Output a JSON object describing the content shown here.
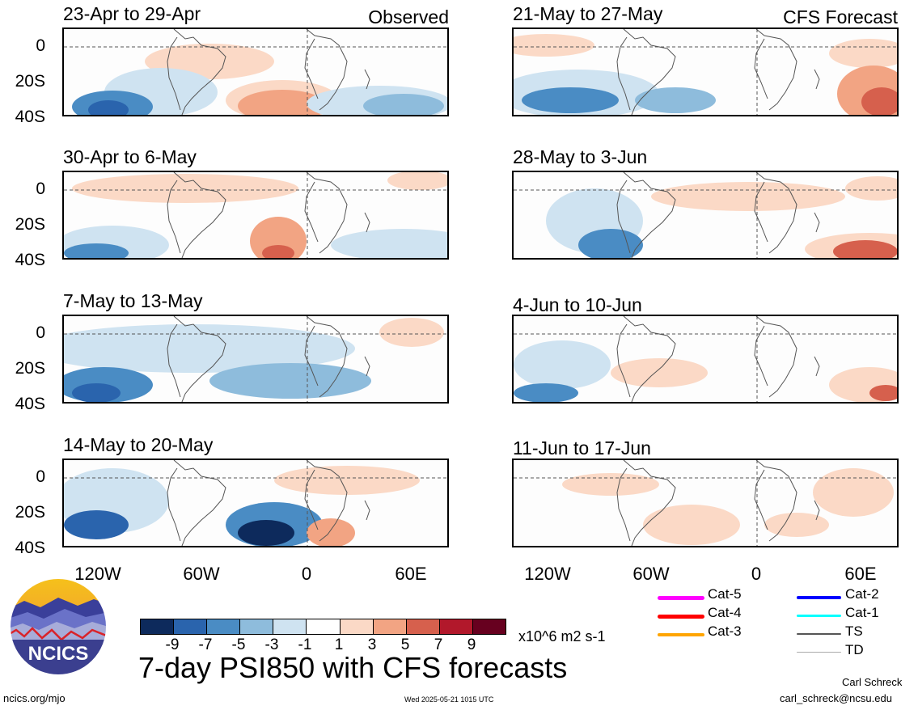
{
  "panels": [
    {
      "title": "23-Apr to 29-Apr",
      "label": "Observed"
    },
    {
      "title": "21-May to 27-May",
      "label": "CFS Forecast"
    },
    {
      "title": "30-Apr to 6-May",
      "label": ""
    },
    {
      "title": "28-May to 3-Jun",
      "label": ""
    },
    {
      "title": "7-May to 13-May",
      "label": ""
    },
    {
      "title": "4-Jun to 10-Jun",
      "label": ""
    },
    {
      "title": "14-May to 20-May",
      "label": ""
    },
    {
      "title": "11-Jun to 17-Jun",
      "label": ""
    }
  ],
  "y_ticks": [
    "0",
    "20S",
    "40S"
  ],
  "x_ticks": [
    "120W",
    "60W",
    "0",
    "60E"
  ],
  "colorbar": {
    "colors": [
      "#0d2a5c",
      "#2a64ad",
      "#4a8cc4",
      "#8ebcdc",
      "#cfe3f1",
      "#ffffff",
      "#fbd9c6",
      "#f2a483",
      "#d6604d",
      "#b2182b",
      "#67001f"
    ],
    "ticks": [
      "-9",
      "-7",
      "-5",
      "-3",
      "-1",
      "1",
      "3",
      "5",
      "7",
      "9"
    ],
    "units": "x10^6 m2 s-1"
  },
  "legend": [
    {
      "label": "Cat-5",
      "color": "#ff00ff"
    },
    {
      "label": "Cat-2",
      "color": "#0000ff"
    },
    {
      "label": "Cat-4",
      "color": "#ff0000"
    },
    {
      "label": "Cat-1",
      "color": "#00ffff"
    },
    {
      "label": "Cat-3",
      "color": "#ffa500"
    },
    {
      "label": "TS",
      "color": "#555555"
    },
    {
      "label": "TD",
      "color": "#aaaaaa"
    }
  ],
  "title": "7-day PSI850 with CFS forecasts",
  "logo_text": "NCICS",
  "footer": {
    "url": "ncics.org/mjo",
    "timestamp": "Wed 2025-05-21 1015 UTC",
    "author": "Carl Schreck",
    "email": "carl_schreck@ncsu.edu"
  }
}
